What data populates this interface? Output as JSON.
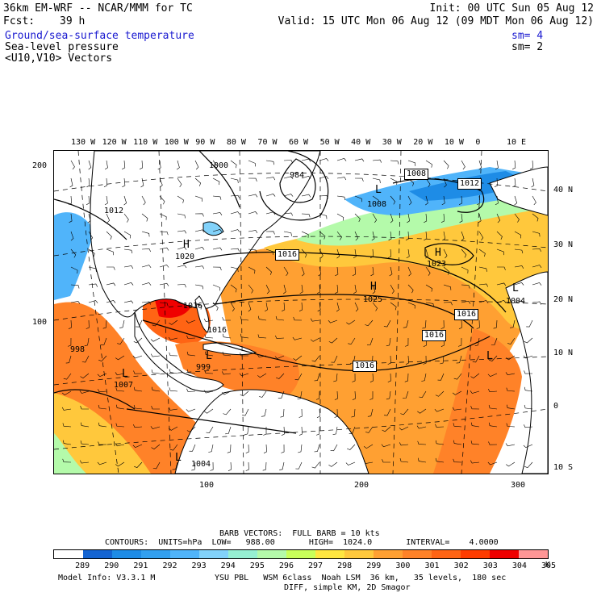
{
  "header": {
    "model": "36km EM-WRF -- NCAR/MMM for TC",
    "init": "Init: 00 UTC Sun 05 Aug 12",
    "fcst_label": "Fcst:",
    "fcst_value": "39 h",
    "valid": "Valid: 15 UTC Mon 06 Aug 12 (09 MDT Mon 06 Aug 12)"
  },
  "fields": [
    {
      "name": "Ground/sea-surface temperature",
      "sm": "sm= 4",
      "color": "#1a1ad0"
    },
    {
      "name": "Sea-level pressure",
      "sm": "sm= 2",
      "color": "#000000"
    },
    {
      "name": "<U10,V10> Vectors",
      "sm": "",
      "color": "#000000"
    }
  ],
  "axes": {
    "top_lon": [
      "130 W",
      "120 W",
      "110 W",
      "100 W",
      "90 W",
      "80 W",
      "70 W",
      "60 W",
      "50 W",
      "40 W",
      "30 W",
      "20 W",
      "10 W",
      "0",
      "10 E"
    ],
    "right_lat": [
      "40 N",
      "30 N",
      "20 N",
      "10 N",
      "0",
      "10 S"
    ],
    "left_grid": [
      "200",
      "100"
    ],
    "bottom_grid": [
      "100",
      "200",
      "300"
    ]
  },
  "map_labels": {
    "pressure_boxes": [
      "1016",
      "1016",
      "1016",
      "1016",
      "1016",
      "1008",
      "1012"
    ],
    "pressure_values": [
      "1000",
      "984",
      "1012",
      "1020",
      "1008",
      "1023",
      "1025",
      "1016",
      "1008",
      "1004",
      "998",
      "1007",
      "999",
      "1004",
      "1016"
    ],
    "highs": [
      "H",
      "H",
      "H"
    ],
    "lows": [
      "L",
      "L",
      "L",
      "L",
      "L",
      "L"
    ]
  },
  "footer": {
    "barb": "BARB VECTORS:  FULL BARB = 10 kts",
    "contours": "CONTOURS:  UNITS=hPa  LOW=   988.00       HIGH=  1024.0       INTERVAL=    4.0000",
    "scale_values": [
      "289",
      "290",
      "291",
      "292",
      "293",
      "294",
      "295",
      "296",
      "297",
      "298",
      "299",
      "300",
      "301",
      "302",
      "303",
      "304",
      "305"
    ],
    "scale_unit": "K",
    "scale_colors": [
      "#ffffff",
      "#1464d2",
      "#1e8ce6",
      "#32a0f0",
      "#50b4fa",
      "#82d2fa",
      "#96f0d2",
      "#b4faaa",
      "#c8ff5a",
      "#ffe640",
      "#ffc83c",
      "#ffa032",
      "#ff8228",
      "#ff6414",
      "#ff3c00",
      "#f00000",
      "#ff9696"
    ],
    "model_info": "Model Info: V3.3.1 M",
    "physics": "YSU PBL   WSM 6class  Noah LSM  36 km,   35 levels,  180 sec",
    "diff": "DIFF, simple KM, 2D Smagor"
  }
}
